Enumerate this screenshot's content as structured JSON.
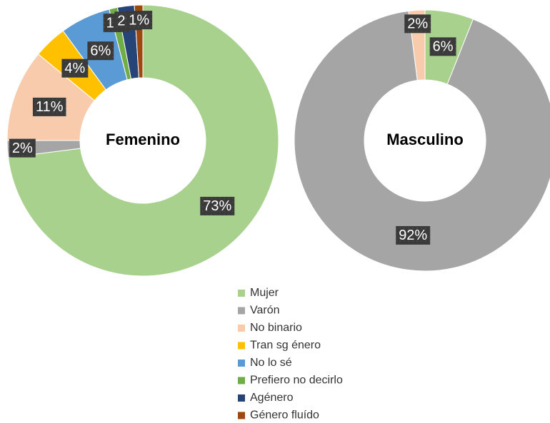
{
  "chart_data": [
    {
      "type": "donut",
      "title": "Femenino",
      "categories": [
        "Mujer",
        "Varón",
        "No binario",
        "Tran sg énero",
        "No lo sé",
        "Prefiero no decirlo",
        "Agénero",
        "Género fluído"
      ],
      "values": [
        73,
        2,
        11,
        4,
        6,
        1,
        2,
        1
      ],
      "value_labels": [
        "73%",
        "2%",
        "11%",
        "4%",
        "6%",
        "1%",
        "2%",
        "1%"
      ],
      "colors": [
        "#a9d18e",
        "#a5a5a5",
        "#f8cbad",
        "#ffc000",
        "#5b9bd5",
        "#70ad47",
        "#264478",
        "#9e480e"
      ]
    },
    {
      "type": "donut",
      "title": "Masculino",
      "categories": [
        "Mujer",
        "Varón",
        "No binario"
      ],
      "values": [
        6,
        92,
        2
      ],
      "value_labels": [
        "6%",
        "92%",
        "2%"
      ],
      "colors": [
        "#a9d18e",
        "#a5a5a5",
        "#f8cbad"
      ]
    }
  ]
}
